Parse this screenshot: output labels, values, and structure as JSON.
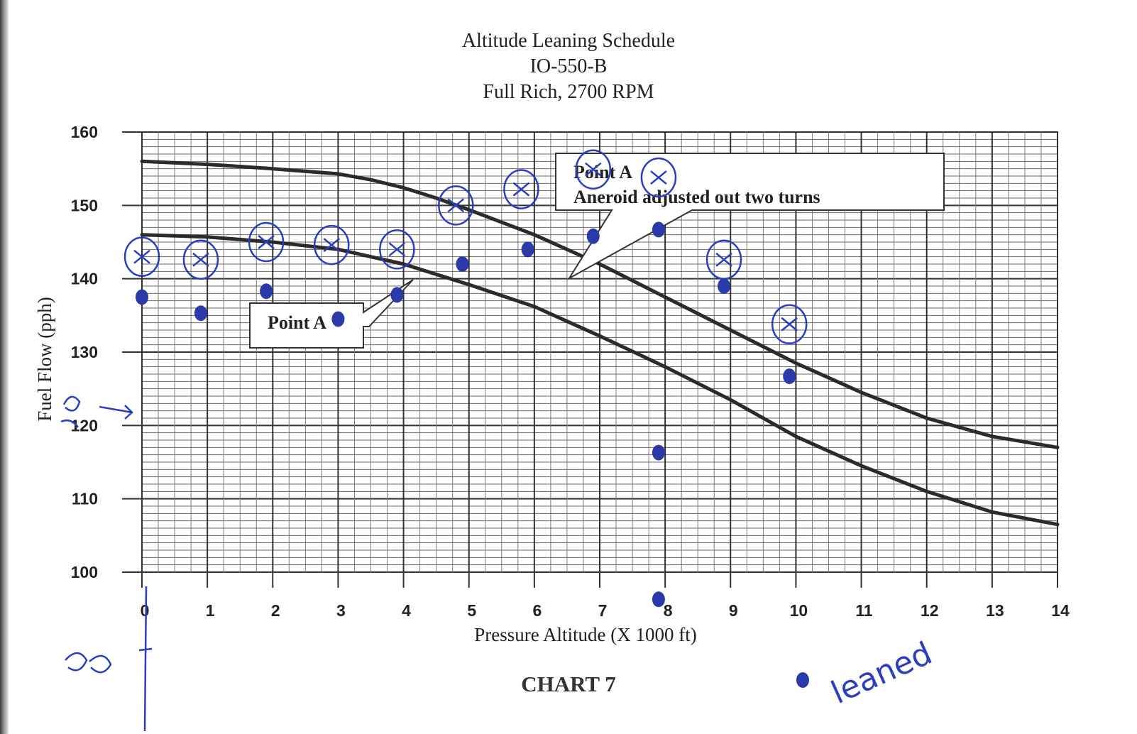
{
  "titles": {
    "line1": "Altitude Leaning Schedule",
    "line2": "IO-550-B",
    "line3": "Full Rich, 2700 RPM"
  },
  "caption": "CHART 7",
  "chart_data": {
    "type": "line",
    "title": "Altitude Leaning Schedule",
    "subtitle": "IO-550-B Full Rich, 2700 RPM",
    "xlabel": "Pressure Altitude (X 1000 ft)",
    "ylabel": "Fuel Flow (pph)",
    "xlim": [
      0,
      14
    ],
    "ylim": [
      100,
      160
    ],
    "x_ticks": [
      "0",
      "1",
      "2",
      "3",
      "4",
      "5",
      "6",
      "7",
      "8",
      "9",
      "10",
      "11",
      "12",
      "13",
      "14"
    ],
    "y_ticks": [
      "100",
      "110",
      "120",
      "130",
      "140",
      "150",
      "160"
    ],
    "grid": true,
    "series": [
      {
        "x": [
          0,
          1,
          2,
          3,
          3.5,
          4,
          4.5,
          5,
          6,
          7,
          8,
          9,
          10,
          11,
          12,
          13,
          14
        ],
        "values": [
          156,
          155.6,
          155,
          154.3,
          153.5,
          152.4,
          151,
          149.4,
          146,
          142,
          137.5,
          133,
          128.5,
          124.5,
          121,
          118.5,
          117
        ],
        "color": "#2b2b2b"
      },
      {
        "x": [
          0,
          1,
          2,
          3,
          4,
          5,
          6,
          7,
          8,
          9,
          10,
          11,
          12,
          13,
          14
        ],
        "values": [
          146,
          145.7,
          145,
          144,
          142,
          139.2,
          136.2,
          132.2,
          128,
          123.5,
          118.5,
          114.5,
          111,
          108.2,
          106.5
        ],
        "color": "#2b2b2b"
      }
    ],
    "annotations": [
      {
        "text": "Point A",
        "x": 3.2,
        "y": 134.3
      },
      {
        "text": "Point A",
        "x": 6.7,
        "y": 153.8
      },
      {
        "text": "Aneroid adjusted out two turns",
        "x": 8.4,
        "y": 150.2
      }
    ],
    "handwritten": {
      "circled_x_marks": [
        {
          "x": 0,
          "y": 143
        },
        {
          "x": 0.9,
          "y": 142.6
        },
        {
          "x": 1.9,
          "y": 145
        },
        {
          "x": 2.9,
          "y": 144.6
        },
        {
          "x": 3.9,
          "y": 144
        },
        {
          "x": 4.8,
          "y": 150
        },
        {
          "x": 5.8,
          "y": 152.2
        },
        {
          "x": 6.9,
          "y": 154.9
        },
        {
          "x": 7.9,
          "y": 153.8
        },
        {
          "x": 8.9,
          "y": 142.6
        },
        {
          "x": 9.9,
          "y": 133.8
        }
      ],
      "dots": [
        {
          "x": 0,
          "y": 137.5
        },
        {
          "x": 0.9,
          "y": 135.3
        },
        {
          "x": 1.9,
          "y": 138.3
        },
        {
          "x": 3,
          "y": 134.5
        },
        {
          "x": 3.9,
          "y": 137.8
        },
        {
          "x": 4.9,
          "y": 142
        },
        {
          "x": 5.9,
          "y": 144
        },
        {
          "x": 6.9,
          "y": 145.8
        },
        {
          "x": 7.9,
          "y": 146.7
        },
        {
          "x": 8.9,
          "y": 139
        },
        {
          "x": 9.9,
          "y": 126.7
        },
        {
          "x": 7.9,
          "y": 116.3
        },
        {
          "x": 7.9,
          "y": 96.3
        }
      ],
      "legend_label": "leaned"
    }
  }
}
